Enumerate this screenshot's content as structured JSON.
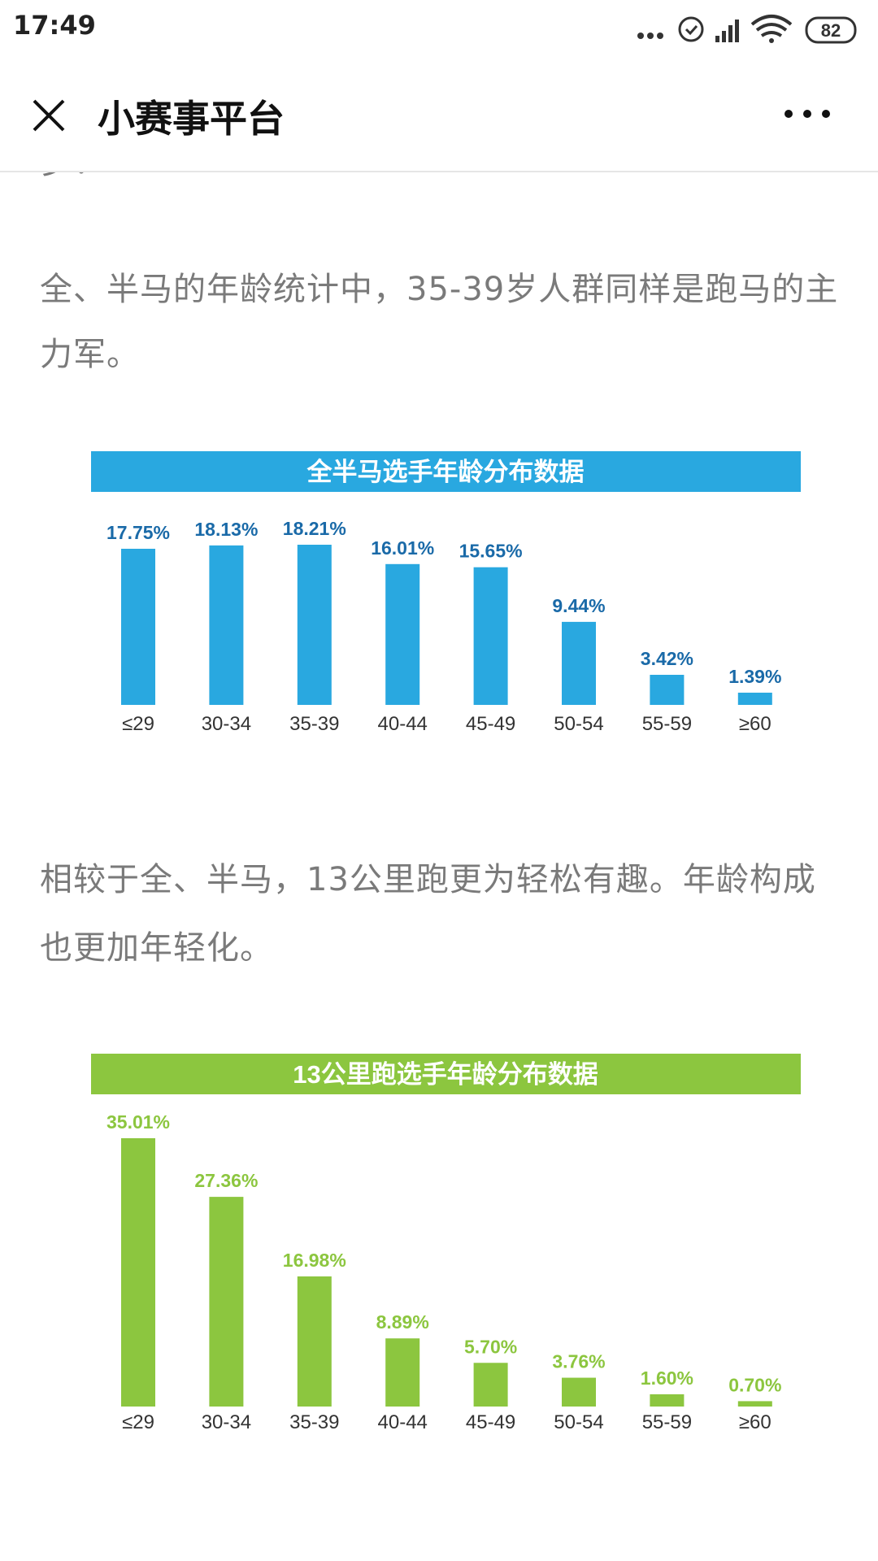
{
  "status_bar": {
    "time": "17:49",
    "battery": 82
  },
  "header": {
    "title": "小赛事平台"
  },
  "article": {
    "fragment": "岁：",
    "paragraphs": [
      "全、半马的年龄统计中，35-39岁人群同样是跑马的主力军。",
      "相较于全、半马，13公里跑更为轻松有趣。年龄构成也更加年轻化。"
    ]
  },
  "chart_data": [
    {
      "type": "bar",
      "title": "全半马选手年龄分布数据",
      "color": "#29a8e0",
      "label_color": "#1a6aa8",
      "categories": [
        "≤29",
        "30-34",
        "35-39",
        "40-44",
        "45-49",
        "50-54",
        "55-59",
        "≥60"
      ],
      "values": [
        17.75,
        18.13,
        18.21,
        16.01,
        15.65,
        9.44,
        3.42,
        1.39
      ],
      "value_labels": [
        "17.75%",
        "18.13%",
        "18.21%",
        "16.01%",
        "15.65%",
        "9.44%",
        "3.42%",
        "1.39%"
      ]
    },
    {
      "type": "bar",
      "title": "13公里跑选手年龄分布数据",
      "color": "#8cc63f",
      "label_color": "#8cc63f",
      "categories": [
        "≤29",
        "30-34",
        "35-39",
        "40-44",
        "45-49",
        "50-54",
        "55-59",
        "≥60"
      ],
      "values": [
        35.01,
        27.36,
        16.98,
        8.89,
        5.7,
        3.76,
        1.6,
        0.7
      ],
      "value_labels": [
        "35.01%",
        "27.36%",
        "16.98%",
        "8.89%",
        "5.70%",
        "3.76%",
        "1.60%",
        "0.70%"
      ]
    }
  ]
}
